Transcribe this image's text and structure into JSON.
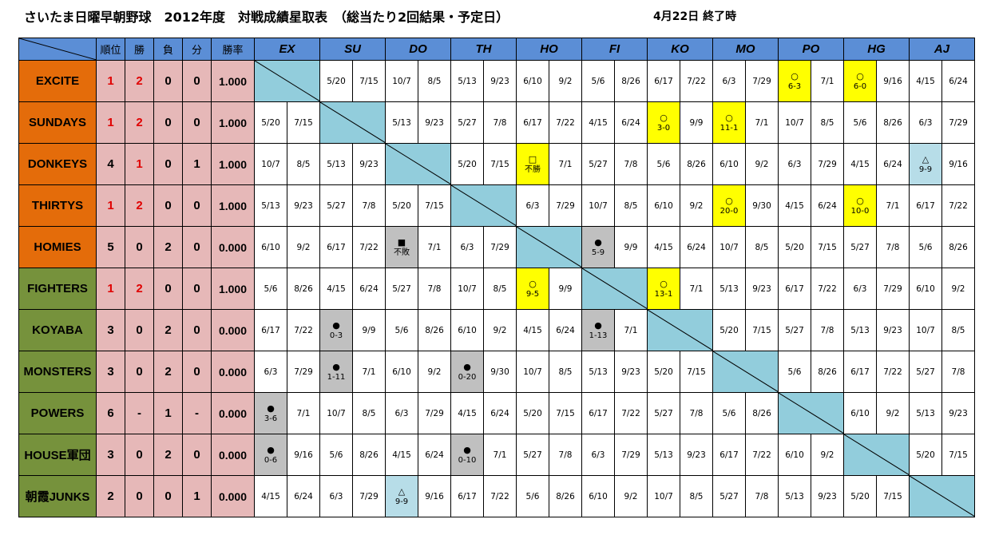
{
  "title": "さいたま日曜早朝野球　2012年度　対戦成績星取表　（総当たり2回結果・予定日）",
  "date_note": "4月22日 終了時",
  "columns": {
    "rank": "順位",
    "wins": "勝",
    "losses": "負",
    "draws": "分",
    "pct": "勝率",
    "teams": [
      "EX",
      "SU",
      "DO",
      "TH",
      "HO",
      "FI",
      "KO",
      "MO",
      "PO",
      "HG",
      "AJ"
    ]
  },
  "colors": {
    "header": "#5b8ed6",
    "team_orange": "#e46c0a",
    "team_green": "#76923c",
    "stats": "#e6b8b8",
    "diagonal": "#92cddc",
    "win": "#ffff00",
    "loss": "#c0c0c0",
    "draw": "#b7dde8",
    "red_value": "#e00000"
  },
  "rows": [
    {
      "name": "EXCITE",
      "color": "orange",
      "rank": "1",
      "wins": "2",
      "losses": "0",
      "draws": "0",
      "pct": "1.000",
      "red": [
        "rank",
        "wins"
      ],
      "cells": [
        null,
        [
          "5/20",
          "7/15"
        ],
        [
          "10/7",
          "8/5"
        ],
        [
          "5/13",
          "9/23"
        ],
        [
          "6/10",
          "9/2"
        ],
        [
          "5/6",
          "8/26"
        ],
        [
          "6/17",
          "7/22"
        ],
        [
          "6/3",
          "7/29"
        ],
        [
          {
            "sym": "○",
            "res": "6-3",
            "t": "win"
          },
          "7/1"
        ],
        [
          {
            "sym": "○",
            "res": "6-0",
            "t": "win"
          },
          "9/16"
        ],
        [
          "4/15",
          "6/24"
        ]
      ]
    },
    {
      "name": "SUNDAYS",
      "color": "orange",
      "rank": "1",
      "wins": "2",
      "losses": "0",
      "draws": "0",
      "pct": "1.000",
      "red": [
        "rank",
        "wins"
      ],
      "cells": [
        [
          "5/20",
          "7/15"
        ],
        null,
        [
          "5/13",
          "9/23"
        ],
        [
          "5/27",
          "7/8"
        ],
        [
          "6/17",
          "7/22"
        ],
        [
          "4/15",
          "6/24"
        ],
        [
          {
            "sym": "○",
            "res": "3-0",
            "t": "win"
          },
          "9/9"
        ],
        [
          {
            "sym": "○",
            "res": "11-1",
            "t": "win"
          },
          "7/1"
        ],
        [
          "10/7",
          "8/5"
        ],
        [
          "5/6",
          "8/26"
        ],
        [
          "6/3",
          "7/29"
        ]
      ]
    },
    {
      "name": "DONKEYS",
      "color": "orange",
      "rank": "4",
      "wins": "1",
      "losses": "0",
      "draws": "1",
      "pct": "1.000",
      "red": [
        "wins"
      ],
      "cells": [
        [
          "10/7",
          "8/5"
        ],
        [
          "5/13",
          "9/23"
        ],
        null,
        [
          "5/20",
          "7/15"
        ],
        [
          {
            "sym": "□",
            "res": "不勝",
            "t": "win"
          },
          "7/1"
        ],
        [
          "5/27",
          "7/8"
        ],
        [
          "5/6",
          "8/26"
        ],
        [
          "6/10",
          "9/2"
        ],
        [
          "6/3",
          "7/29"
        ],
        [
          "4/15",
          "6/24"
        ],
        [
          {
            "sym": "△",
            "res": "9-9",
            "t": "draw"
          },
          "9/16"
        ]
      ]
    },
    {
      "name": "THIRTYS",
      "color": "orange",
      "rank": "1",
      "wins": "2",
      "losses": "0",
      "draws": "0",
      "pct": "1.000",
      "red": [
        "rank",
        "wins"
      ],
      "cells": [
        [
          "5/13",
          "9/23"
        ],
        [
          "5/27",
          "7/8"
        ],
        [
          "5/20",
          "7/15"
        ],
        null,
        [
          "6/3",
          "7/29"
        ],
        [
          "10/7",
          "8/5"
        ],
        [
          "6/10",
          "9/2"
        ],
        [
          {
            "sym": "○",
            "res": "20-0",
            "t": "win"
          },
          "9/30"
        ],
        [
          "4/15",
          "6/24"
        ],
        [
          {
            "sym": "○",
            "res": "10-0",
            "t": "win"
          },
          "7/1"
        ],
        [
          "6/17",
          "7/22"
        ]
      ]
    },
    {
      "name": "HOMIES",
      "color": "orange",
      "rank": "5",
      "wins": "0",
      "losses": "2",
      "draws": "0",
      "pct": "0.000",
      "red": [],
      "cells": [
        [
          "6/10",
          "9/2"
        ],
        [
          "6/17",
          "7/22"
        ],
        [
          {
            "sym": "■",
            "res": "不敗",
            "t": "loss"
          },
          "7/1"
        ],
        [
          "6/3",
          "7/29"
        ],
        null,
        [
          {
            "sym": "●",
            "res": "5-9",
            "t": "loss"
          },
          "9/9"
        ],
        [
          "4/15",
          "6/24"
        ],
        [
          "10/7",
          "8/5"
        ],
        [
          "5/20",
          "7/15"
        ],
        [
          "5/27",
          "7/8"
        ],
        [
          "5/6",
          "8/26"
        ]
      ]
    },
    {
      "name": "FIGHTERS",
      "color": "green",
      "rank": "1",
      "wins": "2",
      "losses": "0",
      "draws": "0",
      "pct": "1.000",
      "red": [
        "rank",
        "wins"
      ],
      "cells": [
        [
          "5/6",
          "8/26"
        ],
        [
          "4/15",
          "6/24"
        ],
        [
          "5/27",
          "7/8"
        ],
        [
          "10/7",
          "8/5"
        ],
        [
          {
            "sym": "○",
            "res": "9-5",
            "t": "win"
          },
          "9/9"
        ],
        null,
        [
          {
            "sym": "○",
            "res": "13-1",
            "t": "win"
          },
          "7/1"
        ],
        [
          "5/13",
          "9/23"
        ],
        [
          "6/17",
          "7/22"
        ],
        [
          "6/3",
          "7/29"
        ],
        [
          "6/10",
          "9/2"
        ]
      ]
    },
    {
      "name": "KOYABA",
      "color": "green",
      "rank": "3",
      "wins": "0",
      "losses": "2",
      "draws": "0",
      "pct": "0.000",
      "red": [],
      "cells": [
        [
          "6/17",
          "7/22"
        ],
        [
          {
            "sym": "●",
            "res": "0-3",
            "t": "loss"
          },
          "9/9"
        ],
        [
          "5/6",
          "8/26"
        ],
        [
          "6/10",
          "9/2"
        ],
        [
          "4/15",
          "6/24"
        ],
        [
          {
            "sym": "●",
            "res": "1-13",
            "t": "loss"
          },
          "7/1"
        ],
        null,
        [
          "5/20",
          "7/15"
        ],
        [
          "5/27",
          "7/8"
        ],
        [
          "5/13",
          "9/23"
        ],
        [
          "10/7",
          "8/5"
        ]
      ]
    },
    {
      "name": "MONSTERS",
      "color": "green",
      "rank": "3",
      "wins": "0",
      "losses": "2",
      "draws": "0",
      "pct": "0.000",
      "red": [],
      "cells": [
        [
          "6/3",
          "7/29"
        ],
        [
          {
            "sym": "●",
            "res": "1-11",
            "t": "loss"
          },
          "7/1"
        ],
        [
          "6/10",
          "9/2"
        ],
        [
          {
            "sym": "●",
            "res": "0-20",
            "t": "loss"
          },
          "9/30"
        ],
        [
          "10/7",
          "8/5"
        ],
        [
          "5/13",
          "9/23"
        ],
        [
          "5/20",
          "7/15"
        ],
        null,
        [
          "5/6",
          "8/26"
        ],
        [
          "6/17",
          "7/22"
        ],
        [
          "5/27",
          "7/8"
        ]
      ]
    },
    {
      "name": "POWERS",
      "color": "green",
      "rank": "6",
      "wins": "-",
      "losses": "1",
      "draws": "-",
      "pct": "0.000",
      "red": [],
      "cells": [
        [
          {
            "sym": "●",
            "res": "3-6",
            "t": "loss"
          },
          "7/1"
        ],
        [
          "10/7",
          "8/5"
        ],
        [
          "6/3",
          "7/29"
        ],
        [
          "4/15",
          "6/24"
        ],
        [
          "5/20",
          "7/15"
        ],
        [
          "6/17",
          "7/22"
        ],
        [
          "5/27",
          "7/8"
        ],
        [
          "5/6",
          "8/26"
        ],
        null,
        [
          "6/10",
          "9/2"
        ],
        [
          "5/13",
          "9/23"
        ]
      ]
    },
    {
      "name": "HOUSE軍団",
      "color": "green",
      "rank": "3",
      "wins": "0",
      "losses": "2",
      "draws": "0",
      "pct": "0.000",
      "red": [],
      "cells": [
        [
          {
            "sym": "●",
            "res": "0-6",
            "t": "loss"
          },
          "9/16"
        ],
        [
          "5/6",
          "8/26"
        ],
        [
          "4/15",
          "6/24"
        ],
        [
          {
            "sym": "●",
            "res": "0-10",
            "t": "loss"
          },
          "7/1"
        ],
        [
          "5/27",
          "7/8"
        ],
        [
          "6/3",
          "7/29"
        ],
        [
          "5/13",
          "9/23"
        ],
        [
          "6/17",
          "7/22"
        ],
        [
          "6/10",
          "9/2"
        ],
        null,
        [
          "5/20",
          "7/15"
        ]
      ]
    },
    {
      "name": "朝霞JUNKS",
      "color": "green",
      "rank": "2",
      "wins": "0",
      "losses": "0",
      "draws": "1",
      "pct": "0.000",
      "red": [],
      "cells": [
        [
          "4/15",
          "6/24"
        ],
        [
          "6/3",
          "7/29"
        ],
        [
          {
            "sym": "△",
            "res": "9-9",
            "t": "draw"
          },
          "9/16"
        ],
        [
          "6/17",
          "7/22"
        ],
        [
          "5/6",
          "8/26"
        ],
        [
          "6/10",
          "9/2"
        ],
        [
          "10/7",
          "8/5"
        ],
        [
          "5/27",
          "7/8"
        ],
        [
          "5/13",
          "9/23"
        ],
        [
          "5/20",
          "7/15"
        ],
        null
      ]
    }
  ]
}
